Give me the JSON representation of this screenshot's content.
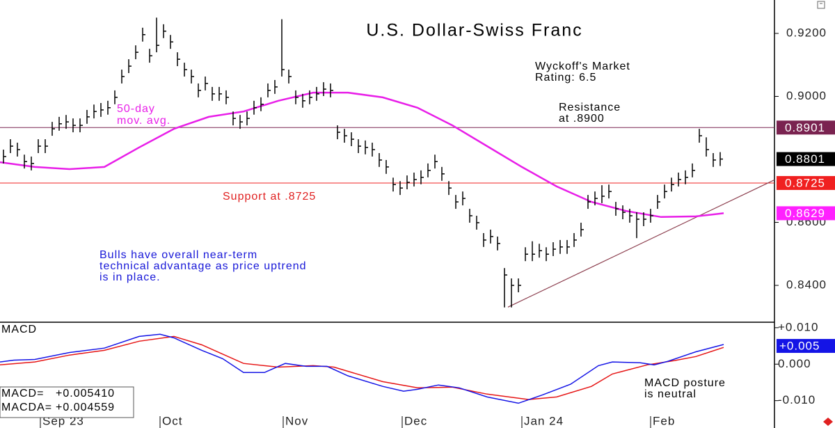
{
  "chart_data": [
    {
      "type": "ohlc",
      "title": "U.S. Dollar-Swiss Franc",
      "xlim": [
        -0.5,
        110.8
      ],
      "xticks": [
        {
          "value": 5.3,
          "label": "Sep 23"
        },
        {
          "value": 22.5,
          "label": "Oct"
        },
        {
          "value": 40.2,
          "label": "Nov"
        },
        {
          "value": 57.3,
          "label": "Dec"
        },
        {
          "value": 74.5,
          "label": "Jan 24"
        },
        {
          "value": 93,
          "label": "Feb"
        }
      ],
      "ylim": [
        0.8283,
        0.9306
      ],
      "yticks": [
        {
          "value": 0.92,
          "label": "0.9200"
        },
        {
          "value": 0.9,
          "label": "0.9000"
        },
        {
          "value": 0.86,
          "label": "0.8600"
        },
        {
          "value": 0.84,
          "label": "0.8400"
        }
      ],
      "color": "#000000",
      "high": [
        0.8831,
        0.8864,
        0.8853,
        0.8815,
        0.8809,
        0.8864,
        0.8864,
        0.8919,
        0.8935,
        0.8941,
        0.893,
        0.893,
        0.8957,
        0.8974,
        0.8979,
        0.8986,
        0.9019,
        0.9085,
        0.9118,
        0.9162,
        0.9218,
        0.9151,
        0.925,
        0.9229,
        0.9195,
        0.914,
        0.9107,
        0.9085,
        0.9041,
        0.9063,
        0.903,
        0.903,
        0.9019,
        0.8952,
        0.8941,
        0.8952,
        0.8986,
        0.8997,
        0.9041,
        0.9052,
        0.9245,
        0.9085,
        0.9019,
        0.9008,
        0.9019,
        0.903,
        0.9045,
        0.9041,
        0.8908,
        0.8897,
        0.8886,
        0.8864,
        0.886,
        0.8853,
        0.882,
        0.8798,
        0.8742,
        0.8731,
        0.8749,
        0.8758,
        0.8765,
        0.8787,
        0.8815,
        0.8776,
        0.8731,
        0.8687,
        0.8698,
        0.8643,
        0.8621,
        0.8566,
        0.8577,
        0.8555,
        0.8455,
        0.8422,
        0.8422,
        0.8521,
        0.854,
        0.8532,
        0.8521,
        0.8537,
        0.8544,
        0.8544,
        0.8566,
        0.8599,
        0.8687,
        0.8698,
        0.8718,
        0.872,
        0.8665,
        0.8654,
        0.8643,
        0.8632,
        0.8632,
        0.8643,
        0.8687,
        0.872,
        0.8742,
        0.8758,
        0.8765,
        0.8787,
        0.8897,
        0.887,
        0.882,
        0.8823
      ],
      "low": [
        0.8787,
        0.882,
        0.8809,
        0.8771,
        0.8765,
        0.882,
        0.882,
        0.8875,
        0.8891,
        0.8897,
        0.8886,
        0.8886,
        0.8913,
        0.893,
        0.8935,
        0.8942,
        0.8975,
        0.9041,
        0.9074,
        0.9118,
        0.9174,
        0.9107,
        0.914,
        0.9185,
        0.9151,
        0.9096,
        0.9063,
        0.9041,
        0.8997,
        0.9019,
        0.8986,
        0.8986,
        0.8975,
        0.8908,
        0.8897,
        0.8908,
        0.8942,
        0.8953,
        0.8997,
        0.9008,
        0.9063,
        0.9041,
        0.8975,
        0.8964,
        0.8975,
        0.8986,
        0.9001,
        0.8997,
        0.8864,
        0.8853,
        0.8842,
        0.882,
        0.8816,
        0.8809,
        0.8776,
        0.8754,
        0.8698,
        0.8687,
        0.8705,
        0.8714,
        0.8721,
        0.8743,
        0.8771,
        0.8732,
        0.8687,
        0.8643,
        0.8654,
        0.8599,
        0.8577,
        0.8522,
        0.8533,
        0.8511,
        0.833,
        0.833,
        0.8378,
        0.8477,
        0.8477,
        0.8488,
        0.8477,
        0.8493,
        0.85,
        0.85,
        0.8522,
        0.8555,
        0.8643,
        0.8654,
        0.8661,
        0.8676,
        0.8621,
        0.861,
        0.8599,
        0.855,
        0.8588,
        0.8599,
        0.8643,
        0.8676,
        0.8698,
        0.8714,
        0.8721,
        0.8743,
        0.8853,
        0.8809,
        0.8776,
        0.8779
      ],
      "close": [
        0.8809,
        0.8842,
        0.8831,
        0.8793,
        0.8787,
        0.8842,
        0.8842,
        0.8897,
        0.8913,
        0.8919,
        0.8908,
        0.8908,
        0.8935,
        0.8952,
        0.8957,
        0.8964,
        0.8997,
        0.9063,
        0.9096,
        0.914,
        0.9196,
        0.9129,
        0.9162,
        0.9207,
        0.9173,
        0.9118,
        0.9085,
        0.9063,
        0.9019,
        0.9041,
        0.9008,
        0.9008,
        0.8997,
        0.893,
        0.8919,
        0.893,
        0.8964,
        0.8975,
        0.9019,
        0.903,
        0.9085,
        0.9063,
        0.8997,
        0.8986,
        0.8997,
        0.9008,
        0.9023,
        0.9019,
        0.8886,
        0.8875,
        0.8864,
        0.8842,
        0.8838,
        0.8831,
        0.8798,
        0.8776,
        0.872,
        0.8709,
        0.8727,
        0.8736,
        0.8743,
        0.8765,
        0.8793,
        0.8754,
        0.8709,
        0.8665,
        0.8676,
        0.8621,
        0.8599,
        0.8544,
        0.8555,
        0.8533,
        0.8433,
        0.84,
        0.84,
        0.8499,
        0.8499,
        0.851,
        0.8499,
        0.8515,
        0.8522,
        0.8522,
        0.8544,
        0.8577,
        0.8665,
        0.8676,
        0.8683,
        0.8698,
        0.8643,
        0.8632,
        0.8621,
        0.861,
        0.861,
        0.8621,
        0.8665,
        0.8698,
        0.872,
        0.8736,
        0.8743,
        0.8765,
        0.8875,
        0.8831,
        0.8798,
        0.8801
      ],
      "moving_average": {
        "label": [
          "50-day",
          "mov. avg."
        ],
        "color": "#e81ee8",
        "x": [
          -0.5,
          4.5,
          9.5,
          14.5,
          19.5,
          24.5,
          29.5,
          34.5,
          39.5,
          44.5,
          49.5,
          54.5,
          59.5,
          64.5,
          69.5,
          74.5,
          79.5,
          84.5,
          89.5,
          94.5,
          99.5,
          103.5
        ],
        "values": [
          0.8791,
          0.8776,
          0.8769,
          0.8776,
          0.8838,
          0.8897,
          0.8935,
          0.8952,
          0.8986,
          0.9012,
          0.9012,
          0.8997,
          0.8964,
          0.8908,
          0.8842,
          0.8776,
          0.8714,
          0.8665,
          0.8636,
          0.8617,
          0.8619,
          0.8629
        ]
      },
      "trendline": {
        "color": "#8a3b4b",
        "x": [
          72.5,
          110.8
        ],
        "values": [
          0.8331,
          0.8735
        ]
      },
      "levels": [
        {
          "value": 0.8901,
          "label": "0.8901",
          "color": "#7a2350",
          "line": true
        },
        {
          "value": 0.8801,
          "label": "0.8801",
          "color": "#000000",
          "line": false
        },
        {
          "value": 0.8725,
          "label": "0.8725",
          "color": "#f02020",
          "line": true
        },
        {
          "value": 0.8629,
          "label": "0.8629",
          "color": "#ff20ff",
          "line": false
        }
      ],
      "rating_note": [
        "Wyckoff's Market",
        "Rating: 6.5"
      ],
      "resistance_note": [
        "Resistance",
        "at .8900"
      ],
      "support_note": "Support at .8725",
      "outlook_note": [
        "Bulls have overall near-term",
        "technical advantage as price uptrend",
        "is in place."
      ]
    },
    {
      "type": "line",
      "title": "MACD",
      "xlim": [
        -0.5,
        110.8
      ],
      "ylim": [
        -0.0175,
        0.0115
      ],
      "yticks": [
        {
          "value": 0.01,
          "label": "+0.010"
        },
        {
          "value": 0,
          "label": "0.000"
        },
        {
          "value": -0.01,
          "label": "-0.010"
        }
      ],
      "series": [
        {
          "name": "MACD=",
          "readout": "+0.005410",
          "color": "#1414e6",
          "x": [
            -0.5,
            1.5,
            4.5,
            9.5,
            14.5,
            19.5,
            22.5,
            24.5,
            28.5,
            31.5,
            34.5,
            37.5,
            40.5,
            43.5,
            46.5,
            49.5,
            54.5,
            57.5,
            59.5,
            62.5,
            65.5,
            69.5,
            74,
            77.5,
            81.5,
            85.5,
            87.5,
            91.5,
            93.5,
            95.5,
            99.5,
            103.5
          ],
          "values": [
            0.0006,
            0.0011,
            0.0013,
            0.0032,
            0.0044,
            0.0076,
            0.0082,
            0.0072,
            0.0038,
            0.0015,
            -0.0023,
            -0.0023,
            0.0002,
            -0.0006,
            -0.0006,
            -0.0032,
            -0.0061,
            -0.0074,
            -0.0069,
            -0.0057,
            -0.0065,
            -0.009,
            -0.0107,
            -0.0084,
            -0.0055,
            -0.0004,
            0.0006,
            0.0004,
            -0.0002,
            0.0008,
            0.0034,
            0.0054
          ]
        },
        {
          "name": "MACDA=",
          "readout": "+0.004559",
          "color": "#e61414",
          "x": [
            -0.5,
            4.5,
            9.5,
            14.5,
            19.5,
            24.5,
            28.5,
            34.5,
            39.5,
            44.5,
            47.5,
            54.5,
            59.5,
            64.5,
            69.5,
            75.5,
            79.5,
            84.5,
            87.5,
            92.5,
            96.5,
            99.5,
            103.5
          ],
          "values": [
            -0.0002,
            0.0006,
            0.0025,
            0.0038,
            0.0063,
            0.0076,
            0.0053,
            0.0002,
            -0.0008,
            -0.0004,
            -0.0008,
            -0.0048,
            -0.0065,
            -0.0063,
            -0.0082,
            -0.0097,
            -0.009,
            -0.0061,
            -0.0027,
            -0.0002,
            0.001,
            0.0021,
            0.0046
          ]
        }
      ],
      "level": {
        "value": 0.005,
        "label": "+0.005",
        "color": "#1414e6"
      },
      "posture_note": [
        "MACD posture",
        "is neutral"
      ]
    }
  ]
}
